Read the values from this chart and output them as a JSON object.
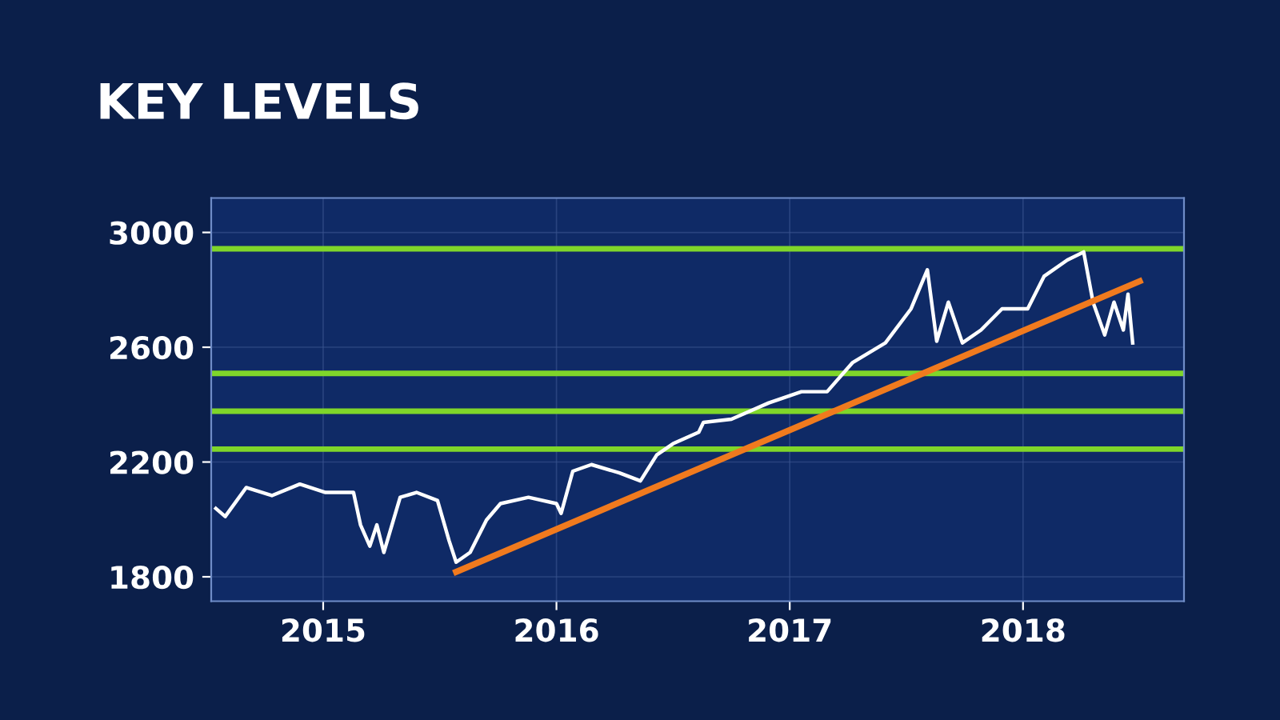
{
  "chart_data": {
    "type": "line",
    "title": "KEY LEVELS",
    "xlim": [
      2015.02,
      2019.19
    ],
    "xticks": [
      {
        "value": 2015.5,
        "label": "2015"
      },
      {
        "value": 2016.5,
        "label": "2016"
      },
      {
        "value": 2017.5,
        "label": "2017"
      },
      {
        "value": 2018.5,
        "label": "2018"
      }
    ],
    "ylim": [
      1715,
      3120
    ],
    "yticks": [
      1800,
      2200,
      2600,
      3000
    ],
    "grid": true,
    "legend": false,
    "series": [
      {
        "color": "#ffffff",
        "x": [
          2015.04,
          2015.08,
          2015.17,
          2015.28,
          2015.4,
          2015.51,
          2015.63,
          2015.66,
          2015.7,
          2015.73,
          2015.76,
          2015.83,
          2015.9,
          2015.99,
          2016.04,
          2016.07,
          2016.13,
          2016.2,
          2016.26,
          2016.38,
          2016.5,
          2016.52,
          2016.57,
          2016.65,
          2016.77,
          2016.86,
          2016.93,
          2017.0,
          2017.11,
          2017.13,
          2017.25,
          2017.41,
          2017.55,
          2017.66,
          2017.77,
          2017.91,
          2018.02,
          2018.09,
          2018.13,
          2018.18,
          2018.24,
          2018.32,
          2018.41,
          2018.52,
          2018.59,
          2018.69,
          2018.76,
          2018.8,
          2018.85,
          2018.89,
          2018.93,
          2018.95,
          2018.97
        ],
        "values": [
          2038,
          2010,
          2111,
          2083,
          2123,
          2094,
          2094,
          1981,
          1907,
          1981,
          1885,
          2077,
          2094,
          2066,
          1925,
          1851,
          1885,
          1998,
          2055,
          2077,
          2055,
          2021,
          2168,
          2191,
          2162,
          2134,
          2225,
          2264,
          2304,
          2338,
          2349,
          2406,
          2445,
          2445,
          2547,
          2615,
          2734,
          2870,
          2621,
          2757,
          2615,
          2660,
          2734,
          2734,
          2847,
          2904,
          2932,
          2757,
          2643,
          2757,
          2660,
          2785,
          2615
        ]
      },
      {
        "type": "line",
        "color": "#f07a1e",
        "x": [
          2016.07,
          2019.0
        ],
        "values": [
          1817,
          2830
        ]
      }
    ],
    "ref_lines": [
      {
        "axis": "y",
        "value": 2943,
        "color": "#7fd62a"
      },
      {
        "axis": "y",
        "value": 2509,
        "color": "#7fd62a"
      },
      {
        "axis": "y",
        "value": 2377,
        "color": "#7fd62a"
      },
      {
        "axis": "y",
        "value": 2245,
        "color": "#7fd62a"
      }
    ]
  }
}
